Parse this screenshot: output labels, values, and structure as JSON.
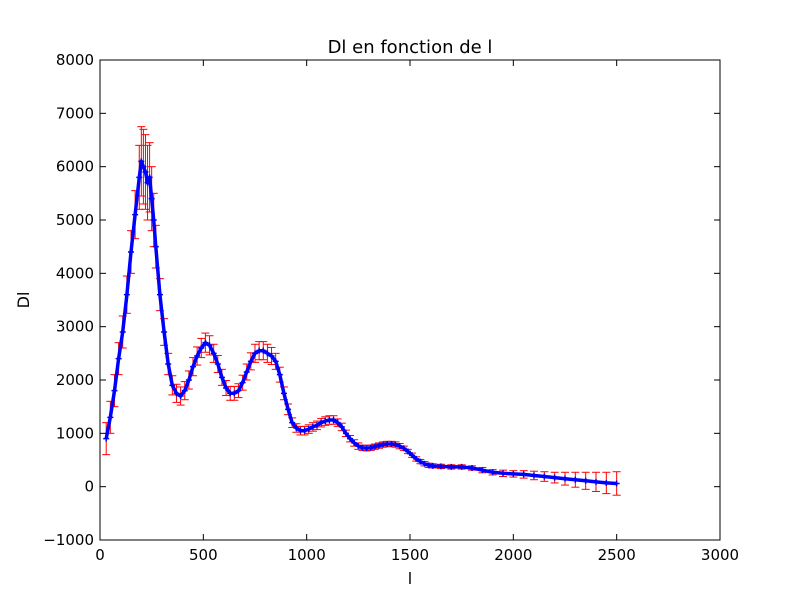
{
  "chart_data": {
    "type": "line",
    "title": "Dl en fonction de l",
    "xlabel": "l",
    "ylabel": "Dl",
    "xlim": [
      0,
      3000
    ],
    "ylim": [
      -1000,
      8000
    ],
    "xticks": [
      "0",
      "500",
      "1000",
      "1500",
      "2000",
      "2500",
      "3000"
    ],
    "yticks": [
      "−1000",
      "0",
      "1000",
      "2000",
      "3000",
      "4000",
      "5000",
      "6000",
      "7000",
      "8000"
    ],
    "xtick_values": [
      0,
      500,
      1000,
      1500,
      2000,
      2500,
      3000
    ],
    "ytick_values": [
      -1000,
      0,
      1000,
      2000,
      3000,
      4000,
      5000,
      6000,
      7000,
      8000
    ],
    "grid": false,
    "series": [
      {
        "color": "#0000ff",
        "errorbar_color": "#ff0000",
        "marker": "cross",
        "x": [
          30,
          50,
          70,
          90,
          110,
          130,
          150,
          170,
          190,
          200,
          210,
          220,
          230,
          240,
          250,
          260,
          270,
          290,
          310,
          330,
          350,
          370,
          390,
          410,
          430,
          450,
          470,
          490,
          510,
          530,
          550,
          570,
          590,
          610,
          630,
          650,
          670,
          690,
          710,
          730,
          750,
          770,
          790,
          810,
          830,
          850,
          870,
          890,
          910,
          930,
          950,
          970,
          990,
          1010,
          1030,
          1050,
          1070,
          1090,
          1110,
          1130,
          1150,
          1170,
          1190,
          1210,
          1230,
          1250,
          1270,
          1290,
          1310,
          1330,
          1350,
          1370,
          1390,
          1410,
          1430,
          1450,
          1470,
          1490,
          1510,
          1530,
          1550,
          1570,
          1590,
          1610,
          1650,
          1700,
          1750,
          1800,
          1850,
          1900,
          1950,
          2000,
          2050,
          2100,
          2150,
          2200,
          2250,
          2300,
          2350,
          2400,
          2450,
          2500
        ],
        "y": [
          900,
          1300,
          1800,
          2400,
          2900,
          3600,
          4400,
          5100,
          5800,
          6100,
          6000,
          5900,
          5700,
          5800,
          5400,
          5000,
          4500,
          3600,
          2900,
          2300,
          1900,
          1750,
          1700,
          1800,
          2000,
          2250,
          2450,
          2600,
          2700,
          2650,
          2500,
          2300,
          2050,
          1850,
          1750,
          1750,
          1800,
          1950,
          2150,
          2350,
          2500,
          2550,
          2550,
          2500,
          2450,
          2350,
          2100,
          1750,
          1450,
          1200,
          1100,
          1050,
          1050,
          1080,
          1120,
          1150,
          1200,
          1230,
          1250,
          1250,
          1200,
          1120,
          1000,
          900,
          820,
          760,
          730,
          720,
          730,
          750,
          770,
          790,
          800,
          800,
          790,
          760,
          720,
          660,
          590,
          520,
          470,
          430,
          400,
          390,
          380,
          370,
          370,
          350,
          310,
          270,
          250,
          240,
          230,
          210,
          190,
          170,
          150,
          130,
          110,
          90,
          70,
          60
        ],
        "yerr": [
          300,
          300,
          300,
          300,
          300,
          350,
          400,
          450,
          600,
          650,
          700,
          700,
          700,
          650,
          600,
          500,
          400,
          300,
          250,
          200,
          180,
          170,
          170,
          170,
          170,
          170,
          170,
          180,
          180,
          180,
          170,
          160,
          150,
          140,
          130,
          130,
          130,
          140,
          150,
          160,
          170,
          170,
          170,
          170,
          160,
          150,
          140,
          120,
          100,
          90,
          80,
          80,
          80,
          80,
          80,
          80,
          80,
          80,
          80,
          80,
          70,
          70,
          60,
          60,
          60,
          60,
          50,
          50,
          50,
          50,
          50,
          50,
          50,
          50,
          50,
          50,
          40,
          40,
          40,
          40,
          40,
          40,
          40,
          40,
          40,
          40,
          40,
          40,
          50,
          50,
          60,
          60,
          70,
          80,
          90,
          100,
          120,
          140,
          160,
          180,
          200,
          220
        ]
      }
    ]
  }
}
